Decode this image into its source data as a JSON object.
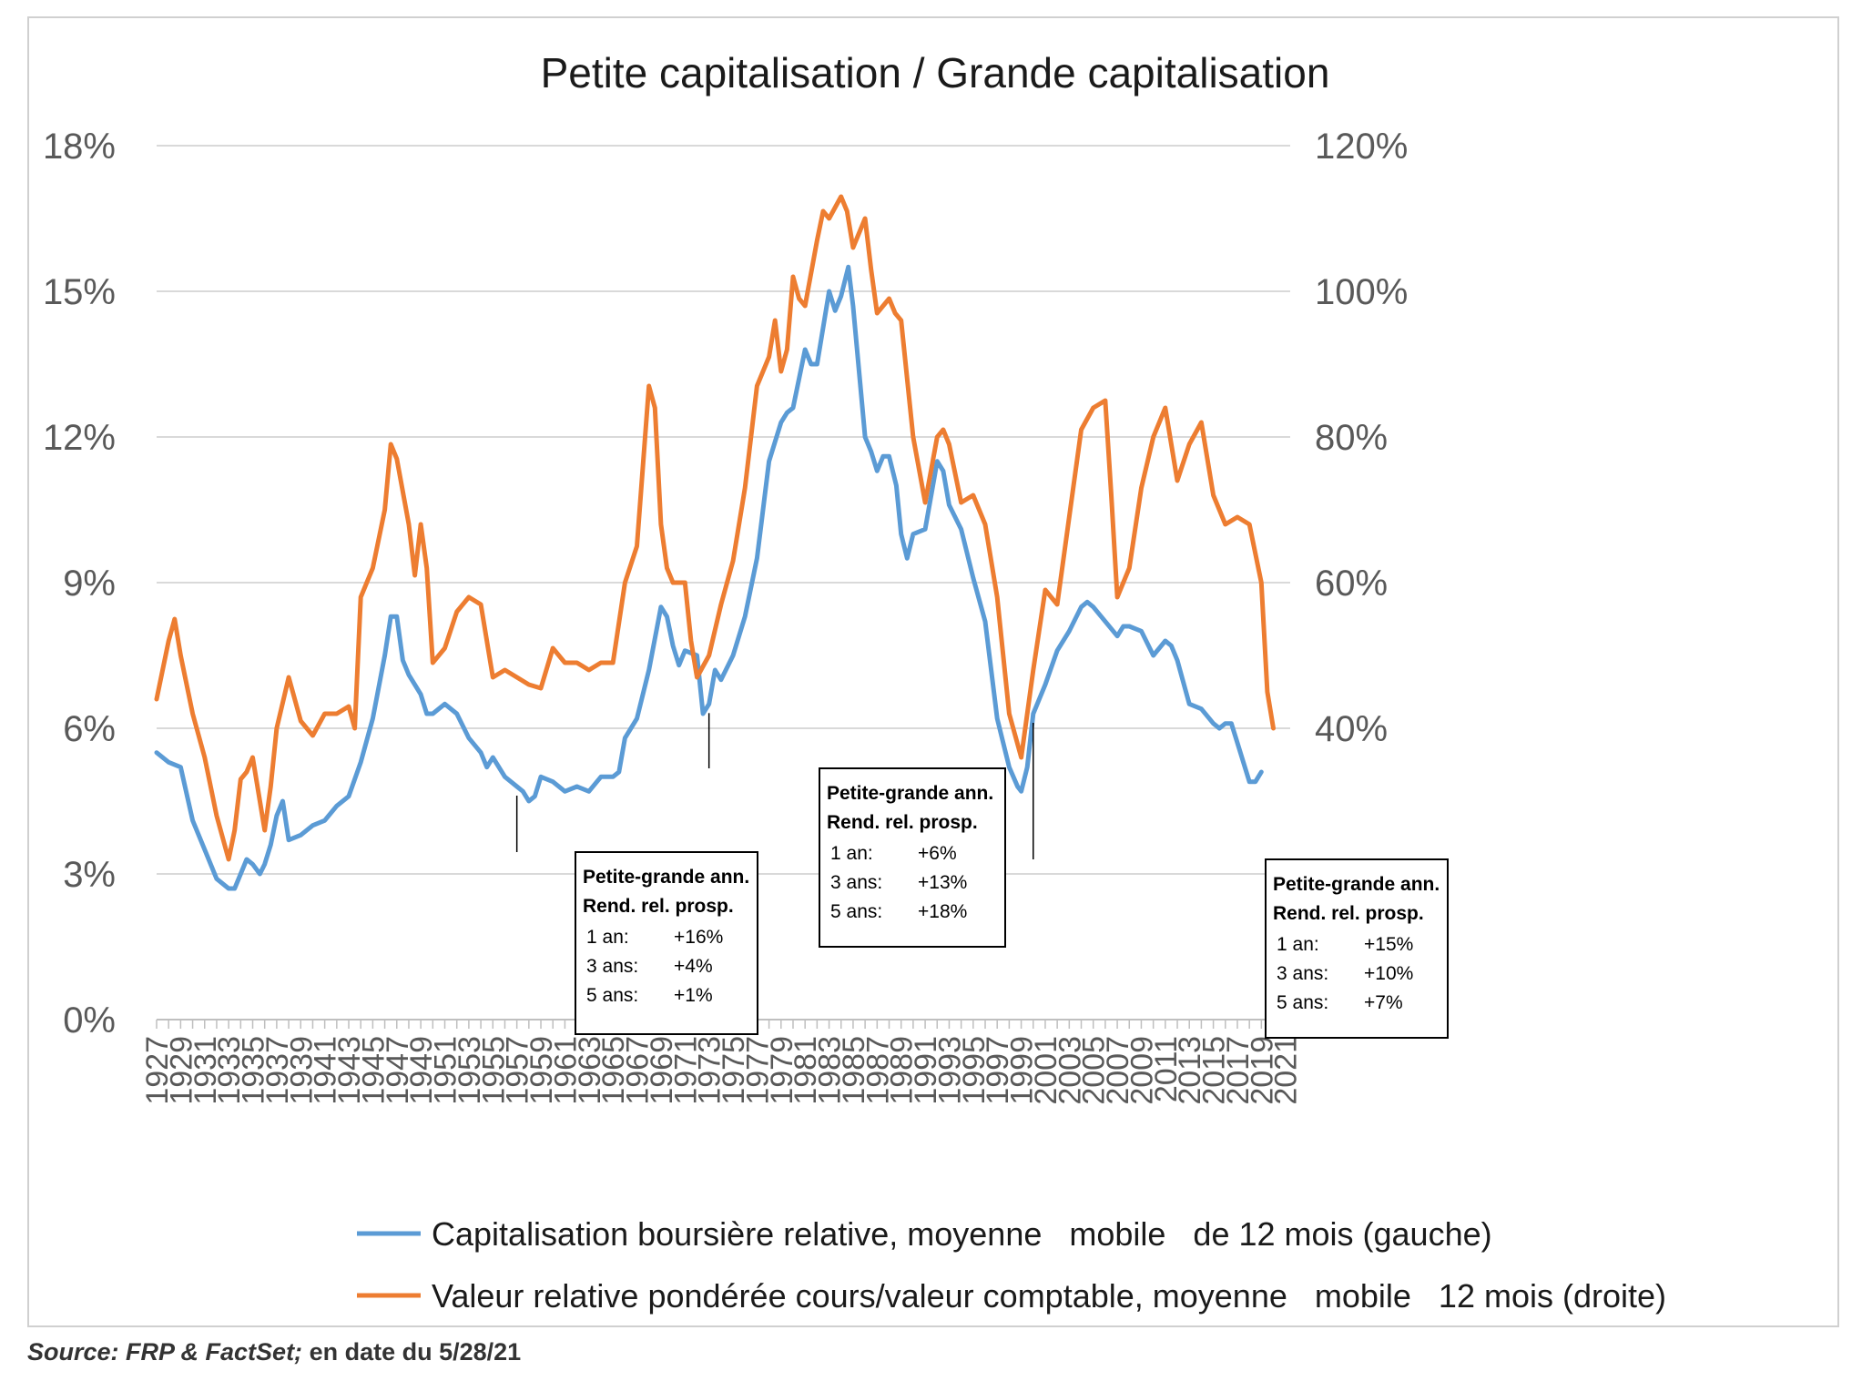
{
  "source": {
    "label": "Source: FRP & FactSet;",
    "date": "en date du 5/28/21"
  },
  "colors": {
    "blue": "#5B9BD5",
    "orange": "#ED7D31",
    "grid": "#d9d9d9",
    "axis": "#bfbfbf"
  },
  "chart_data": {
    "type": "line",
    "title": "Petite capitalisation / Grande capitalisation",
    "grid": true,
    "legend_position": "bottom",
    "x_ticks": [
      "1927",
      "1929",
      "1931",
      "1933",
      "1935",
      "1937",
      "1939",
      "1941",
      "1943",
      "1945",
      "1947",
      "1949",
      "1951",
      "1953",
      "1955",
      "1957",
      "1959",
      "1961",
      "1963",
      "1965",
      "1967",
      "1969",
      "1971",
      "1973",
      "1975",
      "1977",
      "1979",
      "1981",
      "1983",
      "1985",
      "1987",
      "1989",
      "1991",
      "1993",
      "1995",
      "1997",
      "1999",
      "2001",
      "2003",
      "2005",
      "2007",
      "2009",
      "2011",
      "2013",
      "2015",
      "2017",
      "2019",
      "2021"
    ],
    "xlim": [
      1927,
      2021.4
    ],
    "y_left": {
      "range": [
        0,
        18
      ],
      "ticks": [
        "0%",
        "3%",
        "6%",
        "9%",
        "12%",
        "15%",
        "18%"
      ],
      "tick_values": [
        0,
        3,
        6,
        9,
        12,
        15,
        18
      ]
    },
    "y_right": {
      "range": [
        0,
        120
      ],
      "ticks": [
        "0%",
        "20%",
        "40%",
        "60%",
        "80%",
        "100%",
        "120%"
      ],
      "tick_values": [
        0,
        20,
        40,
        60,
        80,
        100,
        120
      ]
    },
    "series": [
      {
        "name": "Capitalisation boursière relative, moyenne   mobile   de 12 mois (gauche)",
        "color": "#5B9BD5",
        "axis": "left",
        "points": [
          [
            1927,
            5.5
          ],
          [
            1928,
            5.3
          ],
          [
            1929,
            5.2
          ],
          [
            1930,
            4.1
          ],
          [
            1931,
            3.5
          ],
          [
            1932,
            2.9
          ],
          [
            1933,
            2.7
          ],
          [
            1933.5,
            2.7
          ],
          [
            1934,
            3.0
          ],
          [
            1934.5,
            3.3
          ],
          [
            1935,
            3.2
          ],
          [
            1935.6,
            3.0
          ],
          [
            1936,
            3.2
          ],
          [
            1936.5,
            3.6
          ],
          [
            1937,
            4.2
          ],
          [
            1937.5,
            4.5
          ],
          [
            1938,
            3.7
          ],
          [
            1939,
            3.8
          ],
          [
            1940,
            4.0
          ],
          [
            1941,
            4.1
          ],
          [
            1942,
            4.4
          ],
          [
            1943,
            4.6
          ],
          [
            1944,
            5.3
          ],
          [
            1945,
            6.2
          ],
          [
            1946,
            7.5
          ],
          [
            1946.5,
            8.3
          ],
          [
            1947,
            8.3
          ],
          [
            1947.5,
            7.4
          ],
          [
            1948,
            7.1
          ],
          [
            1949,
            6.7
          ],
          [
            1949.5,
            6.3
          ],
          [
            1950,
            6.3
          ],
          [
            1951,
            6.5
          ],
          [
            1952,
            6.3
          ],
          [
            1953,
            5.8
          ],
          [
            1954,
            5.5
          ],
          [
            1954.5,
            5.2
          ],
          [
            1955,
            5.4
          ],
          [
            1956,
            5.0
          ],
          [
            1957,
            4.8
          ],
          [
            1957.5,
            4.7
          ],
          [
            1958,
            4.5
          ],
          [
            1958.5,
            4.6
          ],
          [
            1959,
            5.0
          ],
          [
            1960,
            4.9
          ],
          [
            1961,
            4.7
          ],
          [
            1962,
            4.8
          ],
          [
            1963,
            4.7
          ],
          [
            1964,
            5.0
          ],
          [
            1965,
            5.0
          ],
          [
            1965.5,
            5.1
          ],
          [
            1966,
            5.8
          ],
          [
            1967,
            6.2
          ],
          [
            1968,
            7.2
          ],
          [
            1969,
            8.5
          ],
          [
            1969.5,
            8.3
          ],
          [
            1970,
            7.7
          ],
          [
            1970.5,
            7.3
          ],
          [
            1971,
            7.6
          ],
          [
            1972,
            7.5
          ],
          [
            1972.5,
            6.3
          ],
          [
            1973,
            6.5
          ],
          [
            1973.5,
            7.2
          ],
          [
            1974,
            7.0
          ],
          [
            1975,
            7.5
          ],
          [
            1976,
            8.3
          ],
          [
            1977,
            9.5
          ],
          [
            1978,
            11.5
          ],
          [
            1979,
            12.3
          ],
          [
            1979.5,
            12.5
          ],
          [
            1980,
            12.6
          ],
          [
            1981,
            13.8
          ],
          [
            1981.5,
            13.5
          ],
          [
            1982,
            13.5
          ],
          [
            1983,
            15.0
          ],
          [
            1983.5,
            14.6
          ],
          [
            1984,
            14.9
          ],
          [
            1984.6,
            15.5
          ],
          [
            1985,
            14.7
          ],
          [
            1986,
            12.0
          ],
          [
            1986.5,
            11.7
          ],
          [
            1987,
            11.3
          ],
          [
            1987.5,
            11.6
          ],
          [
            1988,
            11.6
          ],
          [
            1988.6,
            11.0
          ],
          [
            1989,
            10.0
          ],
          [
            1989.5,
            9.5
          ],
          [
            1990,
            10.0
          ],
          [
            1991,
            10.1
          ],
          [
            1992,
            11.5
          ],
          [
            1992.5,
            11.3
          ],
          [
            1993,
            10.6
          ],
          [
            1994,
            10.1
          ],
          [
            1995,
            9.1
          ],
          [
            1996,
            8.2
          ],
          [
            1997,
            6.2
          ],
          [
            1998,
            5.2
          ],
          [
            1998.7,
            4.8
          ],
          [
            1999,
            4.7
          ],
          [
            1999.5,
            5.2
          ],
          [
            2000,
            6.3
          ],
          [
            2001,
            6.9
          ],
          [
            2002,
            7.6
          ],
          [
            2003,
            8.0
          ],
          [
            2004,
            8.5
          ],
          [
            2004.5,
            8.6
          ],
          [
            2005,
            8.5
          ],
          [
            2006,
            8.2
          ],
          [
            2007,
            7.9
          ],
          [
            2007.5,
            8.1
          ],
          [
            2008,
            8.1
          ],
          [
            2009,
            8.0
          ],
          [
            2010,
            7.5
          ],
          [
            2011,
            7.8
          ],
          [
            2011.5,
            7.7
          ],
          [
            2012,
            7.4
          ],
          [
            2013,
            6.5
          ],
          [
            2014,
            6.4
          ],
          [
            2015,
            6.1
          ],
          [
            2015.5,
            6.0
          ],
          [
            2016,
            6.1
          ],
          [
            2016.5,
            6.1
          ],
          [
            2017,
            5.7
          ],
          [
            2018,
            4.9
          ],
          [
            2018.5,
            4.9
          ],
          [
            2019,
            5.1
          ]
        ]
      },
      {
        "name": "Valeur relative pondérée cours/valeur comptable, moyenne   mobile   12 mois (droite)",
        "color": "#ED7D31",
        "axis": "right",
        "points": [
          [
            1927,
            44
          ],
          [
            1928,
            52
          ],
          [
            1928.5,
            55
          ],
          [
            1929,
            50
          ],
          [
            1930,
            42
          ],
          [
            1931,
            36
          ],
          [
            1932,
            28
          ],
          [
            1933,
            22
          ],
          [
            1933.5,
            26
          ],
          [
            1934,
            33
          ],
          [
            1934.5,
            34
          ],
          [
            1935,
            36
          ],
          [
            1935.5,
            31
          ],
          [
            1936,
            26
          ],
          [
            1936.5,
            32
          ],
          [
            1937,
            40
          ],
          [
            1938,
            47
          ],
          [
            1939,
            41
          ],
          [
            1940,
            39
          ],
          [
            1941,
            42
          ],
          [
            1942,
            42
          ],
          [
            1943,
            43
          ],
          [
            1943.5,
            40
          ],
          [
            1944,
            58
          ],
          [
            1945,
            62
          ],
          [
            1946,
            70
          ],
          [
            1946.5,
            79
          ],
          [
            1947,
            77
          ],
          [
            1948,
            68
          ],
          [
            1948.5,
            61
          ],
          [
            1949,
            68
          ],
          [
            1949.5,
            62
          ],
          [
            1950,
            49
          ],
          [
            1951,
            51
          ],
          [
            1952,
            56
          ],
          [
            1953,
            58
          ],
          [
            1954,
            57
          ],
          [
            1955,
            47
          ],
          [
            1956,
            48
          ],
          [
            1957,
            47
          ],
          [
            1958,
            46
          ],
          [
            1959,
            45.5
          ],
          [
            1960,
            51
          ],
          [
            1961,
            49
          ],
          [
            1962,
            49
          ],
          [
            1963,
            48
          ],
          [
            1964,
            49
          ],
          [
            1965,
            49
          ],
          [
            1966,
            60
          ],
          [
            1967,
            65
          ],
          [
            1968,
            87
          ],
          [
            1968.5,
            84
          ],
          [
            1969,
            68
          ],
          [
            1969.5,
            62
          ],
          [
            1970,
            60
          ],
          [
            1971,
            60
          ],
          [
            1971.5,
            52
          ],
          [
            1972,
            47
          ],
          [
            1973,
            50
          ],
          [
            1974,
            57
          ],
          [
            1975,
            63
          ],
          [
            1976,
            73
          ],
          [
            1977,
            87
          ],
          [
            1978,
            91
          ],
          [
            1978.5,
            96
          ],
          [
            1979,
            89
          ],
          [
            1979.5,
            92
          ],
          [
            1980,
            102
          ],
          [
            1980.5,
            99
          ],
          [
            1981,
            98
          ],
          [
            1982,
            107
          ],
          [
            1982.5,
            111
          ],
          [
            1983,
            110
          ],
          [
            1984,
            113
          ],
          [
            1984.5,
            111
          ],
          [
            1985,
            106
          ],
          [
            1985.5,
            108
          ],
          [
            1986,
            110
          ],
          [
            1986.5,
            103
          ],
          [
            1987,
            97
          ],
          [
            1988,
            99
          ],
          [
            1988.5,
            97
          ],
          [
            1989,
            96
          ],
          [
            1990,
            80
          ],
          [
            1991,
            71
          ],
          [
            1992,
            80
          ],
          [
            1992.5,
            81
          ],
          [
            1993,
            79
          ],
          [
            1994,
            71
          ],
          [
            1995,
            72
          ],
          [
            1996,
            68
          ],
          [
            1997,
            58
          ],
          [
            1998,
            42
          ],
          [
            1999,
            36
          ],
          [
            2000,
            48
          ],
          [
            2001,
            59
          ],
          [
            2002,
            57
          ],
          [
            2003,
            69
          ],
          [
            2004,
            81
          ],
          [
            2005,
            84
          ],
          [
            2006,
            85
          ],
          [
            2006.5,
            72
          ],
          [
            2007,
            58
          ],
          [
            2008,
            62
          ],
          [
            2009,
            73
          ],
          [
            2010,
            80
          ],
          [
            2011,
            84
          ],
          [
            2012,
            74
          ],
          [
            2013,
            79
          ],
          [
            2014,
            82
          ],
          [
            2015,
            72
          ],
          [
            2016,
            68
          ],
          [
            2017,
            69
          ],
          [
            2018,
            68
          ],
          [
            2019,
            60
          ],
          [
            2019.5,
            45
          ],
          [
            2020,
            40
          ]
        ]
      }
    ],
    "annotations": [
      {
        "anchor_x": 1957,
        "header1": "Petite-grande ann.",
        "header2": "Rend. rel. prosp.",
        "rows": [
          {
            "label": "1 an:",
            "value": "+16%"
          },
          {
            "label": "3 ans:",
            "value": "+4%"
          },
          {
            "label": "5 ans:",
            "value": "+1%"
          }
        ]
      },
      {
        "anchor_x": 1973,
        "header1": "Petite-grande ann.",
        "header2": "Rend. rel. prosp.",
        "rows": [
          {
            "label": "1 an:",
            "value": "+6%"
          },
          {
            "label": "3 ans:",
            "value": "+13%"
          },
          {
            "label": "5 ans:",
            "value": "+18%"
          }
        ]
      },
      {
        "anchor_x": 2000,
        "header1": "Petite-grande ann.",
        "header2": "Rend. rel. prosp.",
        "rows": [
          {
            "label": "1 an:",
            "value": "+15%"
          },
          {
            "label": "3 ans:",
            "value": "+10%"
          },
          {
            "label": "5 ans:",
            "value": "+7%"
          }
        ]
      }
    ]
  }
}
